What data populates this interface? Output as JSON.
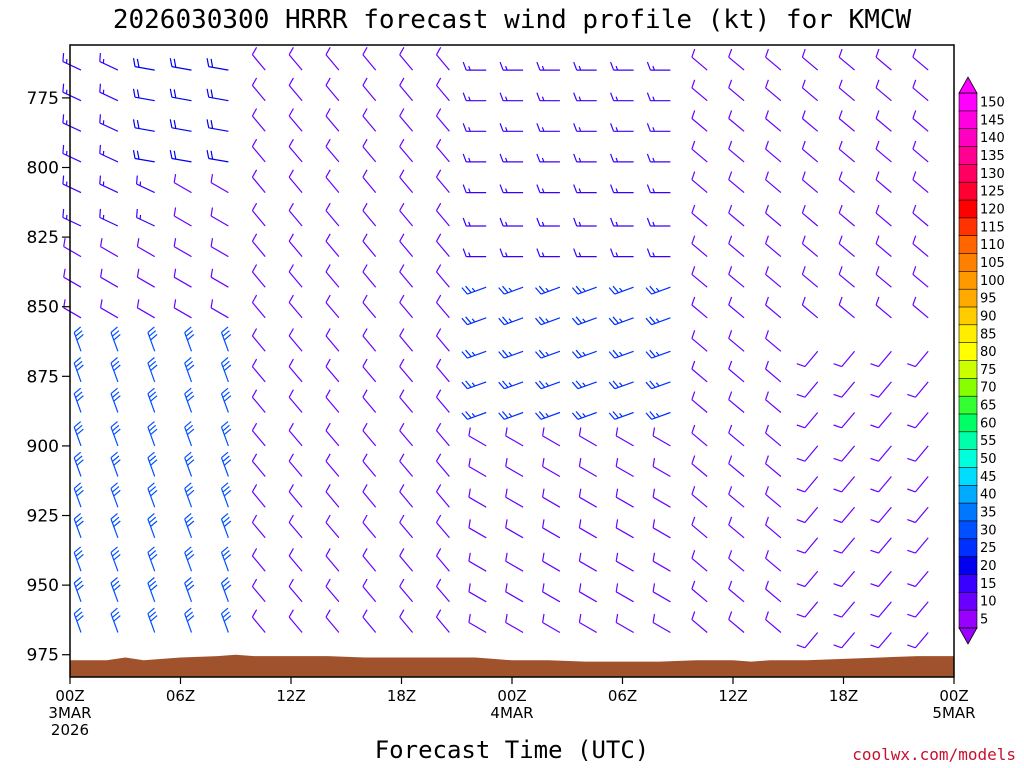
{
  "chart_data": {
    "type": "wind_profile",
    "title": "2026030300 HRRR forecast wind profile (kt) for KMCW",
    "xlabel": "Forecast Time (UTC)",
    "credit": "coolwx.com/models",
    "y_axis": {
      "ticks": [
        "775",
        "800",
        "825",
        "850",
        "875",
        "900",
        "925",
        "950",
        "975"
      ],
      "values": [
        775,
        800,
        825,
        850,
        875,
        900,
        925,
        950,
        975
      ],
      "range": [
        756,
        983
      ],
      "units": "hPa"
    },
    "x_axis": {
      "range_hours": [
        0,
        48
      ],
      "ticks": [
        {
          "hour": 0,
          "lines": [
            "00Z",
            "3MAR",
            "2026"
          ]
        },
        {
          "hour": 6,
          "lines": [
            "06Z"
          ]
        },
        {
          "hour": 12,
          "lines": [
            "12Z"
          ]
        },
        {
          "hour": 18,
          "lines": [
            "18Z"
          ]
        },
        {
          "hour": 24,
          "lines": [
            "00Z",
            "4MAR"
          ]
        },
        {
          "hour": 30,
          "lines": [
            "06Z"
          ]
        },
        {
          "hour": 36,
          "lines": [
            "12Z"
          ]
        },
        {
          "hour": 42,
          "lines": [
            "18Z"
          ]
        },
        {
          "hour": 48,
          "lines": [
            "00Z",
            "5MAR"
          ]
        }
      ]
    },
    "colorbar": {
      "labels": [
        "150",
        "145",
        "140",
        "135",
        "130",
        "125",
        "120",
        "115",
        "110",
        "105",
        "100",
        "95",
        "90",
        "85",
        "80",
        "75",
        "70",
        "65",
        "60",
        "55",
        "50",
        "45",
        "40",
        "35",
        "30",
        "25",
        "20",
        "15",
        "10",
        "5"
      ],
      "colors": [
        "#ff00ff",
        "#ff00e0",
        "#ff00c0",
        "#ff0090",
        "#ff0060",
        "#ff0030",
        "#ff0000",
        "#ff3300",
        "#ff6600",
        "#ff8000",
        "#ff9900",
        "#ffaa00",
        "#ffcc00",
        "#ffee00",
        "#ffff00",
        "#ccff00",
        "#88ff00",
        "#33ff33",
        "#00ff66",
        "#00ffaa",
        "#00ffdd",
        "#00ddff",
        "#00aaff",
        "#0077ff",
        "#0050ff",
        "#0030ff",
        "#0000ee",
        "#3a00ff",
        "#6a00ff",
        "#9900ff"
      ]
    },
    "terrain": {
      "color": "#a0522d",
      "hours": [
        0,
        2,
        3,
        4,
        6,
        8,
        9,
        10,
        12,
        14,
        16,
        18,
        20,
        22,
        23,
        24,
        26,
        28,
        30,
        32,
        34,
        36,
        37,
        38,
        40,
        42,
        44,
        46,
        48
      ],
      "surface_hpa": [
        977,
        977,
        976,
        977,
        976,
        975.5,
        975,
        975.5,
        975.5,
        975.5,
        976,
        976,
        976,
        976,
        976.5,
        977,
        977,
        977.5,
        977.5,
        977.5,
        977,
        977,
        977.5,
        977,
        977,
        976.5,
        976,
        975.5,
        975.5
      ]
    },
    "barb_grid": {
      "hours": [
        0.6,
        2.6,
        4.6,
        6.6,
        8.6,
        10.6,
        12.6,
        14.6,
        16.6,
        18.6,
        20.6,
        22.6,
        24.6,
        26.6,
        28.6,
        30.6,
        32.6,
        34.6,
        36.6,
        38.6,
        40.6,
        42.6,
        44.6,
        46.6
      ],
      "levels_hpa": [
        765,
        776,
        787,
        798,
        809,
        821,
        832,
        843,
        854,
        866,
        877,
        888,
        900,
        911,
        922,
        933,
        945,
        956,
        967
      ]
    },
    "barbs": [
      {
        "h": [
          0,
          10.6
        ],
        "p": [
          765,
          860
        ],
        "dir": 300,
        "spd": 10
      },
      {
        "h": [
          0,
          10.6
        ],
        "p": [
          860,
          983
        ],
        "dir": 340,
        "spd": 30
      },
      {
        "h": [
          0,
          4.6
        ],
        "p": [
          765,
          830
        ],
        "dir": 295,
        "spd": 15
      },
      {
        "h": [
          4.6,
          8.6
        ],
        "p": [
          765,
          800
        ],
        "dir": 280,
        "spd": 20
      },
      {
        "h": [
          10.6,
          22.6
        ],
        "p": [
          765,
          983
        ],
        "dir": 320,
        "spd": 10
      },
      {
        "h": [
          22.6,
          34.6
        ],
        "p": [
          765,
          840
        ],
        "dir": 270,
        "spd": 15
      },
      {
        "h": [
          22.6,
          34.6
        ],
        "p": [
          840,
          900
        ],
        "dir": 250,
        "spd": 25
      },
      {
        "h": [
          22.6,
          34.6
        ],
        "p": [
          900,
          983
        ],
        "dir": 300,
        "spd": 10
      },
      {
        "h": [
          34.6,
          48
        ],
        "p": [
          765,
          983
        ],
        "dir": 310,
        "spd": 10
      },
      {
        "h": [
          40.6,
          48
        ],
        "p": [
          860,
          983
        ],
        "dir": 220,
        "spd": 10
      }
    ]
  }
}
